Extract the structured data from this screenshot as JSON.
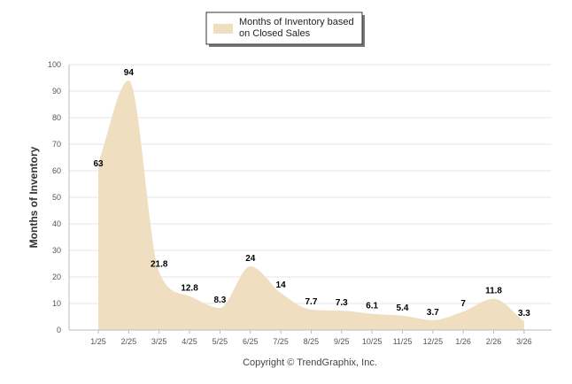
{
  "chart_data": {
    "type": "area",
    "categories": [
      "1/25",
      "2/25",
      "3/25",
      "4/25",
      "5/25",
      "6/25",
      "7/25",
      "8/25",
      "9/25",
      "10/25",
      "11/25",
      "12/25",
      "1/26",
      "2/26",
      "3/26"
    ],
    "series": [
      {
        "name": "Months of Inventory based on Closed Sales",
        "values": [
          63,
          94,
          21.8,
          12.8,
          8.3,
          24,
          14,
          7.7,
          7.3,
          6.1,
          5.4,
          3.7,
          7,
          11.8,
          3.3
        ],
        "labels": [
          "63",
          "94",
          "21.8",
          "12.8",
          "8.3",
          "24",
          "14",
          "7.7",
          "7.3",
          "6.1",
          "5.4",
          "3.7",
          "7",
          "11.8",
          "3.3"
        ]
      }
    ],
    "ylabel": "Months of Inventory",
    "xlabel": "",
    "ylim": [
      0,
      100
    ],
    "yticks": [
      0,
      10,
      20,
      30,
      40,
      50,
      60,
      70,
      80,
      90,
      100
    ],
    "grid": true,
    "legend_position": "top-center",
    "fill_color": "#efdfc0",
    "legend_lines": [
      "Months of Inventory based",
      "on Closed Sales"
    ]
  },
  "footer": "Copyright © TrendGraphix, Inc."
}
